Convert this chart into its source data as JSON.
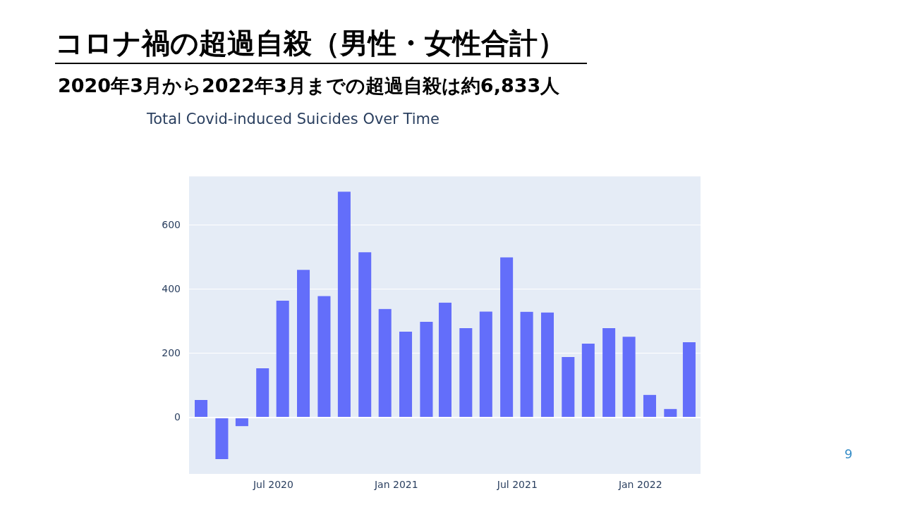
{
  "chart_data": {
    "type": "bar",
    "title": "コロナ禍の超過自殺（男性・女性合計）",
    "subtitle": "2020年3月から2022年3月までの超過自殺は約6,833人",
    "annotations": [
      "Total Covid-induced Suicides Over Time",
      "9"
    ],
    "x": [
      "2020-03-15",
      "2020-04-15",
      "2020-05-15",
      "2020-06-15",
      "2020-07-15",
      "2020-08-15",
      "2020-09-15",
      "2020-10-15",
      "2020-11-15",
      "2020-12-15",
      "2021-01-15",
      "2021-02-15",
      "2021-03-15",
      "2021-04-15",
      "2021-05-15",
      "2021-06-15",
      "2021-07-15",
      "2021-08-15",
      "2021-09-15",
      "2021-10-15",
      "2021-11-15",
      "2021-12-15",
      "2022-01-15",
      "2022-02-15",
      "2022-03-15"
    ],
    "values": [
      56,
      -131,
      -28,
      155,
      366,
      462,
      380,
      706,
      517,
      340,
      269,
      300,
      360,
      280,
      332,
      501,
      331,
      329,
      190,
      232,
      280,
      253,
      72,
      28,
      236
    ],
    "color": "#636efa",
    "xlim": [
      "2020-02-26",
      "2022-04-01"
    ],
    "xticks": [
      {
        "value": "2020-07-01",
        "label": "Jul 2020"
      },
      {
        "value": "2021-01-01",
        "label": "Jan 2021"
      },
      {
        "value": "2021-07-01",
        "label": "Jul 2021"
      },
      {
        "value": "2022-01-01",
        "label": "Jan 2022"
      }
    ],
    "ylim": [
      -176,
      753
    ],
    "yticks": [
      0,
      200,
      400,
      600
    ],
    "grid": "y"
  }
}
